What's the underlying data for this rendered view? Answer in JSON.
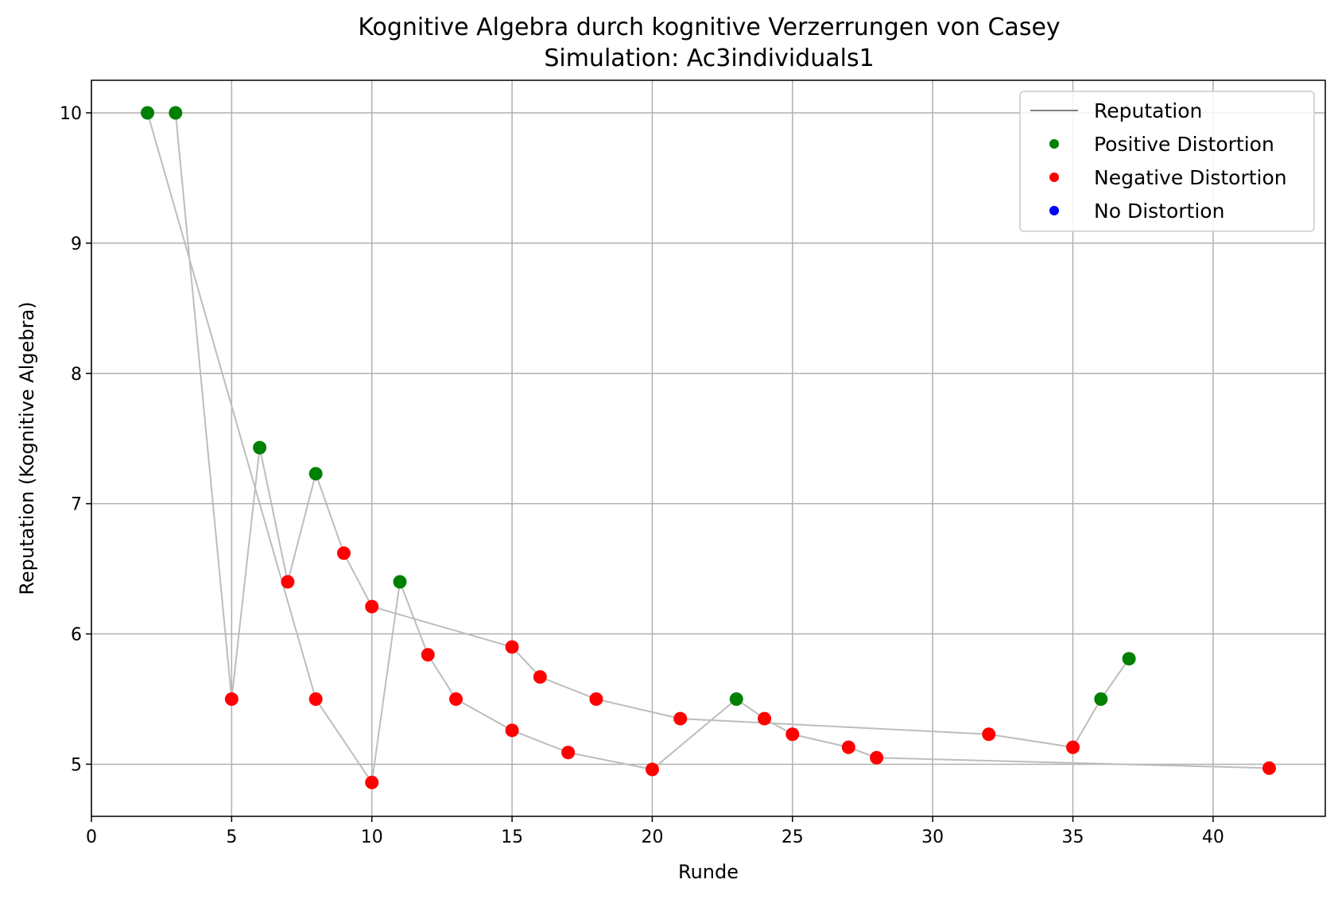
{
  "chart_data": {
    "type": "scatter",
    "title": "Kognitive Algebra durch kognitive Verzerrungen von Casey",
    "subtitle": "Simulation: Ac3individuals1",
    "xlabel": "Runde",
    "ylabel": "Reputation (Kognitive Algebra)",
    "xlim": [
      0,
      44
    ],
    "ylim": [
      4.6,
      10.25
    ],
    "xticks": [
      0,
      5,
      10,
      15,
      20,
      25,
      30,
      35,
      40
    ],
    "yticks": [
      5,
      6,
      7,
      8,
      9,
      10
    ],
    "grid": true,
    "legend_position": "top-right",
    "legend": [
      {
        "label": "Reputation",
        "kind": "line",
        "color": "#808080"
      },
      {
        "label": "Positive Distortion",
        "kind": "marker",
        "color": "#008000"
      },
      {
        "label": "Negative Distortion",
        "kind": "marker",
        "color": "#ff0000"
      },
      {
        "label": "No Distortion",
        "kind": "marker",
        "color": "#0000ff"
      }
    ],
    "line_color": "#bdbdbd",
    "lines": [
      [
        [
          2,
          10.0
        ],
        [
          8,
          5.5
        ],
        [
          10,
          4.86
        ],
        [
          11,
          6.4
        ],
        [
          12,
          5.84
        ],
        [
          13,
          5.5
        ],
        [
          15,
          5.26
        ],
        [
          17,
          5.09
        ],
        [
          20,
          4.96
        ],
        [
          23,
          5.5
        ],
        [
          24,
          5.35
        ],
        [
          25,
          5.23
        ],
        [
          27,
          5.13
        ],
        [
          28,
          5.05
        ],
        [
          42,
          4.97
        ]
      ],
      [
        [
          3,
          10.0
        ],
        [
          5,
          5.5
        ],
        [
          6,
          7.43
        ],
        [
          7,
          6.4
        ],
        [
          8,
          7.23
        ],
        [
          9,
          6.62
        ],
        [
          10,
          6.21
        ],
        [
          15,
          5.9
        ],
        [
          16,
          5.67
        ],
        [
          18,
          5.5
        ],
        [
          21,
          5.35
        ],
        [
          32,
          5.23
        ],
        [
          35,
          5.13
        ],
        [
          36,
          5.5
        ],
        [
          37,
          5.81
        ]
      ]
    ],
    "series": [
      {
        "name": "Positive Distortion",
        "color": "#008000",
        "x": [
          2,
          3,
          6,
          8,
          11,
          23,
          36,
          37
        ],
        "y": [
          10.0,
          10.0,
          7.43,
          7.23,
          6.4,
          5.5,
          5.5,
          5.81
        ]
      },
      {
        "name": "Negative Distortion",
        "color": "#ff0000",
        "x": [
          5,
          7,
          8,
          9,
          10,
          10,
          12,
          13,
          15,
          15,
          16,
          17,
          18,
          20,
          21,
          24,
          25,
          27,
          28,
          32,
          35,
          42
        ],
        "y": [
          5.5,
          6.4,
          5.5,
          6.62,
          6.21,
          4.86,
          5.84,
          5.5,
          5.9,
          5.26,
          5.67,
          5.09,
          5.5,
          4.96,
          5.35,
          5.35,
          5.23,
          5.13,
          5.05,
          5.23,
          5.13,
          4.97
        ]
      },
      {
        "name": "No Distortion",
        "color": "#0000ff",
        "x": [],
        "y": []
      }
    ]
  }
}
